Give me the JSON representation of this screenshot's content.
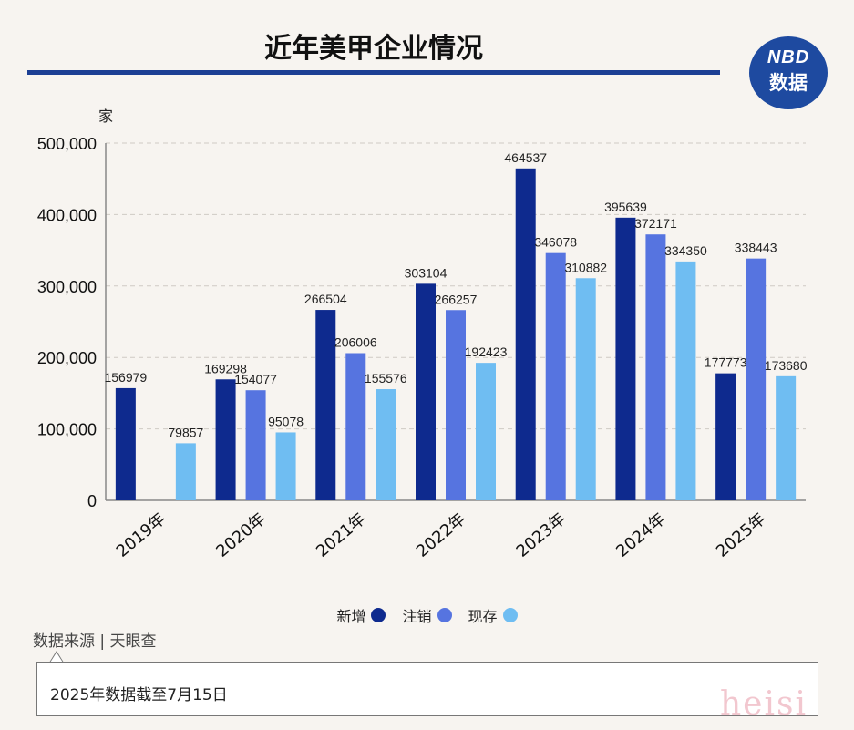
{
  "header": {
    "title": "近年美甲企业情况"
  },
  "logo": {
    "line1": "NBD",
    "line2": "数据"
  },
  "source": "数据来源 | 天眼查",
  "note": "2025年数据截至7月15日",
  "watermark_signature": "heisi",
  "colors": {
    "new": "#0e2a8e",
    "cancel": "#5674e0",
    "existing": "#6fbdf2",
    "title_rule": "#1c3f94"
  },
  "chart_data": {
    "type": "bar",
    "title": "近年美甲企业情况",
    "ylabel": "家",
    "xlabel": "",
    "ylim": [
      0,
      500000
    ],
    "yticks": [
      "0",
      "100,000",
      "200,000",
      "300,000",
      "400,000",
      "500,000"
    ],
    "categories": [
      "2019年",
      "2020年",
      "2021年",
      "2022年",
      "2023年",
      "2024年",
      "2025年"
    ],
    "series": [
      {
        "name": "新增",
        "values": [
          156979,
          169298,
          266504,
          303104,
          464537,
          395639,
          177773
        ]
      },
      {
        "name": "注销",
        "values": [
          null,
          154077,
          206006,
          266257,
          346078,
          372171,
          338443
        ]
      },
      {
        "name": "现存",
        "values": [
          79857,
          95078,
          155576,
          192423,
          310882,
          334350,
          173680
        ]
      }
    ],
    "grid": true,
    "legend_position": "bottom"
  }
}
